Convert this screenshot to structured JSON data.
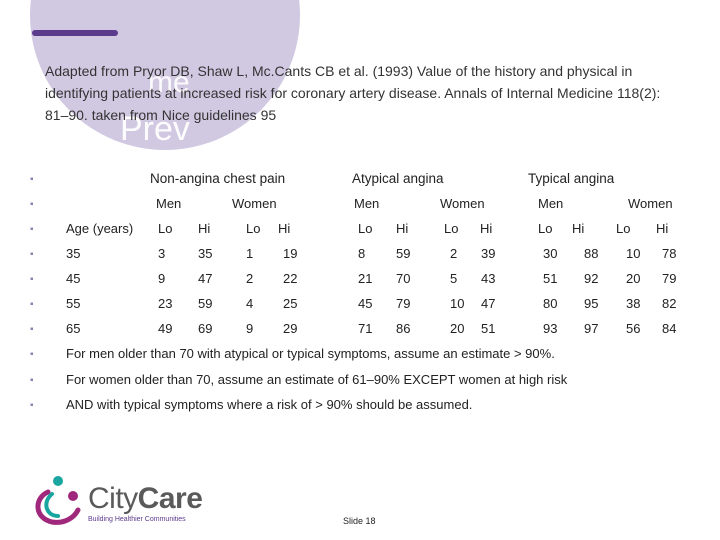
{
  "header": {
    "citation": "Adapted from Pryor DB, Shaw L, Mc.Cants CB et al. (1993) Value of the history and physical in identifying patients at increased risk for coronary artery disease. Annals of Internal Medicine 118(2): 81–90. taken from Nice guidelines 95",
    "ghost_text_1": "me",
    "ghost_text_2": "Prev"
  },
  "table": {
    "groups": [
      "Non-angina chest pain",
      "Atypical angina",
      "Typical angina"
    ],
    "sexes": [
      "Men",
      "Women",
      "Men",
      "Women",
      "Men",
      "Women"
    ],
    "row_label_header": "Age (years)",
    "lohi": [
      "Lo",
      "Hi",
      "Lo",
      "Hi",
      "Lo",
      "Hi",
      "Lo",
      "Hi",
      "Lo",
      "Hi",
      "Lo",
      "Hi"
    ],
    "rows": [
      {
        "age": "35",
        "values": [
          "3",
          "35",
          "1",
          "19",
          "8",
          "59",
          "2",
          "39",
          "30",
          "88",
          "10",
          "78"
        ]
      },
      {
        "age": "45",
        "values": [
          "9",
          "47",
          "2",
          "22",
          "21",
          "70",
          "5",
          "43",
          "51",
          "92",
          "20",
          "79"
        ]
      },
      {
        "age": "55",
        "values": [
          "23",
          "59",
          "4",
          "25",
          "45",
          "79",
          "10",
          "47",
          "80",
          "95",
          "38",
          "82"
        ]
      },
      {
        "age": "65",
        "values": [
          "49",
          "69",
          "9",
          "29",
          "71",
          "86",
          "20",
          "51",
          "93",
          "97",
          "56",
          "84"
        ]
      }
    ]
  },
  "notes": [
    "For men older than 70 with atypical or typical symptoms, assume an estimate > 90%.",
    "For women older than 70, assume an estimate of 61–90% EXCEPT women at high risk",
    "AND with typical symptoms where a risk of > 90% should be assumed."
  ],
  "footer": {
    "logo_text_prefix": "City",
    "logo_text_suffix": "Care",
    "tagline": "Building Healthier Communities",
    "slide_number": "Slide 18"
  },
  "colors": {
    "brand_purple": "#5b3b8c",
    "brand_teal": "#1aa6a0",
    "brand_magenta": "#a0287c",
    "highlight_red": "#c0302a",
    "highlight_green": "#2f9c6b"
  }
}
